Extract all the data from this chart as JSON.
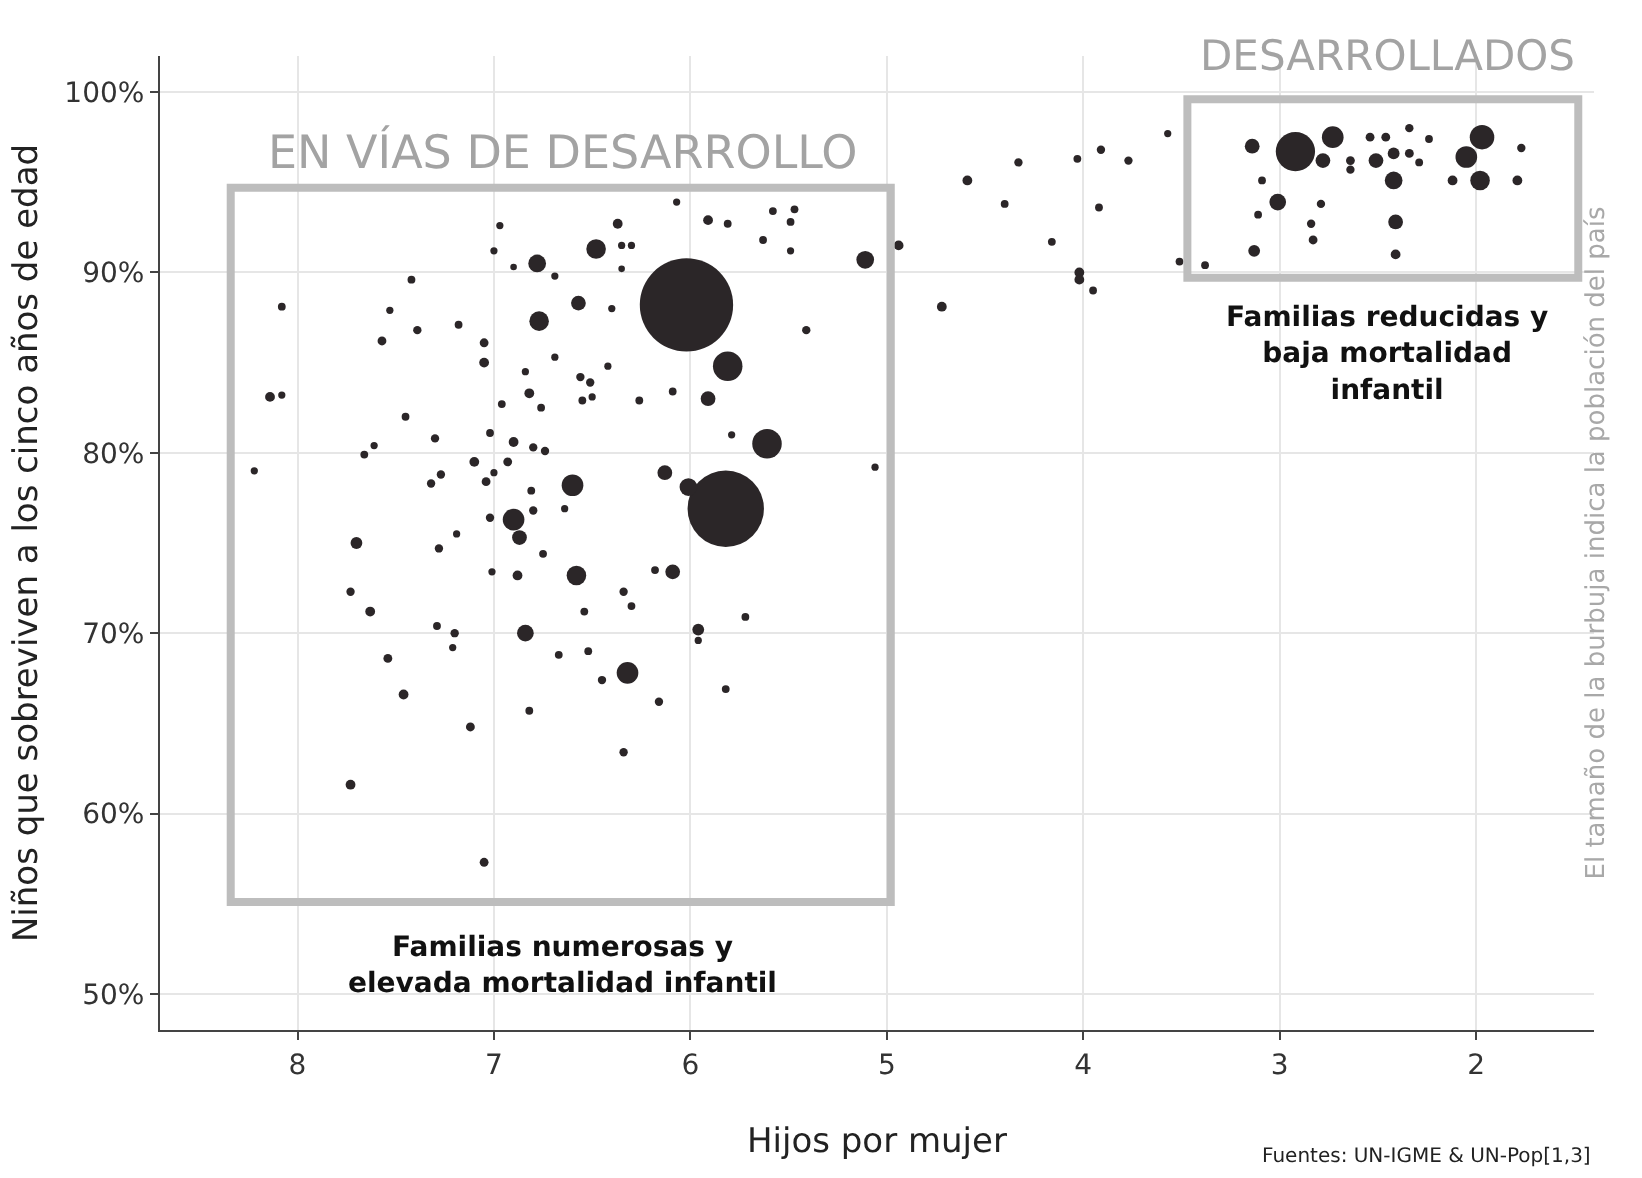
{
  "chart_data": {
    "type": "bubble",
    "xlabel": "Hijos por mujer",
    "ylabel": "Niños que sobreviven a los cinco años de edad",
    "annotations": [
      "EN VÍAS DE DESARROLLO",
      "DESARROLLADOS",
      "Familias numerosas y\nelevada mortalidad infantil",
      "Familias reducidas y\nbaja mortalidad\ninfantil",
      "El tamaño de la burbuja indica la población del país",
      "Fuentes: UN-IGME & UN-Pop[1,3]"
    ],
    "xlim": [
      8.7,
      1.4
    ],
    "xticks": [
      8,
      7,
      6,
      5,
      4,
      3,
      2
    ],
    "ylim": [
      48,
      102
    ],
    "yticks": [
      {
        "value": 50,
        "label": "50%"
      },
      {
        "value": 60,
        "label": "60%"
      },
      {
        "value": 70,
        "label": "70%"
      },
      {
        "value": 80,
        "label": "80%"
      },
      {
        "value": 90,
        "label": "90%"
      },
      {
        "value": 100,
        "label": "100%"
      }
    ],
    "grid": true,
    "marker": "circle",
    "series": [
      {
        "color": "#2b2628",
        "x": [
          6.02,
          5.82,
          2.92,
          6.07,
          6.37,
          5.91,
          5.81,
          6.97,
          5.58,
          5.47,
          5.49,
          5.63,
          5.49,
          6.48,
          6.35,
          6.3,
          6.35,
          7.0,
          6.78,
          6.9,
          6.69,
          5.11,
          4.94,
          7.42,
          8.08,
          7.53,
          6.57,
          6.4,
          6.77,
          7.18,
          7.39,
          7.57,
          7.05,
          5.41,
          5.81,
          7.05,
          6.69,
          6.42,
          6.84,
          6.56,
          6.51,
          8.14,
          8.08,
          6.82,
          6.55,
          6.5,
          6.96,
          6.76,
          6.26,
          6.09,
          5.91,
          7.45,
          7.02,
          7.3,
          5.79,
          6.9,
          6.8,
          6.74,
          7.61,
          7.66,
          5.61,
          7.1,
          6.93,
          7.0,
          7.27,
          7.32,
          7.04,
          6.13,
          8.22,
          5.06,
          6.6,
          6.01,
          6.81,
          6.64,
          7.02,
          6.9,
          6.8,
          6.87,
          6.75,
          7.7,
          7.28,
          7.19,
          7.01,
          6.88,
          6.58,
          6.18,
          6.09,
          7.73,
          7.63,
          6.34,
          6.3,
          6.54,
          5.72,
          7.29,
          7.2,
          7.21,
          6.84,
          5.96,
          5.96,
          7.54,
          6.67,
          6.52,
          6.32,
          6.45,
          5.82,
          7.46,
          6.16,
          6.82,
          6.34,
          7.73,
          7.05,
          7.12,
          4.72,
          4.59,
          4.4,
          4.33,
          4.16,
          4.03,
          3.91,
          3.92,
          3.77,
          4.02,
          4.02,
          3.95,
          3.57,
          3.51,
          3.38,
          3.14,
          2.73,
          2.78,
          2.64,
          2.64,
          2.54,
          2.46,
          2.34,
          2.24,
          2.51,
          2.42,
          2.42,
          2.34,
          2.29,
          1.97,
          2.05,
          1.98,
          2.12,
          1.77,
          1.79,
          3.09,
          3.01,
          2.79,
          3.11,
          2.84,
          2.83,
          2.41,
          3.13,
          2.41
        ],
        "values": [
          88.2,
          76.9,
          96.7,
          93.9,
          92.7,
          92.9,
          92.7,
          92.6,
          93.4,
          93.5,
          92.8,
          91.8,
          91.2,
          91.3,
          91.5,
          91.5,
          90.2,
          91.2,
          90.5,
          90.3,
          89.8,
          90.7,
          91.5,
          89.6,
          88.1,
          87.9,
          88.3,
          88.0,
          87.3,
          87.1,
          86.8,
          86.2,
          86.1,
          86.8,
          84.8,
          85.0,
          85.3,
          84.8,
          84.5,
          84.2,
          83.9,
          83.1,
          83.2,
          83.3,
          82.9,
          83.1,
          82.7,
          82.5,
          82.9,
          83.4,
          83.0,
          82.0,
          81.1,
          80.8,
          81.0,
          80.6,
          80.3,
          80.1,
          80.4,
          79.9,
          80.5,
          79.5,
          79.5,
          78.9,
          78.8,
          78.3,
          78.4,
          78.9,
          79.0,
          79.2,
          78.2,
          78.1,
          77.9,
          76.9,
          76.4,
          76.3,
          76.8,
          75.3,
          74.4,
          75.0,
          74.7,
          75.5,
          73.4,
          73.2,
          73.2,
          73.5,
          73.4,
          72.3,
          71.2,
          72.3,
          71.5,
          71.2,
          70.9,
          70.4,
          70.0,
          69.2,
          70.0,
          70.2,
          69.6,
          68.6,
          68.8,
          69.0,
          67.8,
          67.4,
          66.9,
          66.6,
          66.2,
          65.7,
          63.4,
          61.6,
          57.3,
          64.8,
          88.1,
          95.1,
          93.8,
          96.1,
          91.7,
          96.3,
          96.8,
          93.6,
          96.2,
          90.0,
          89.6,
          89.0,
          97.7,
          90.6,
          90.4,
          97.0,
          97.5,
          96.2,
          96.2,
          95.7,
          97.5,
          97.5,
          98.0,
          97.4,
          96.2,
          96.6,
          95.1,
          96.6,
          96.1,
          97.5,
          96.4,
          95.1,
          95.1,
          96.9,
          95.1,
          95.1,
          93.9,
          93.8,
          93.2,
          92.7,
          91.8,
          92.8,
          91.2,
          91.0
        ],
        "sizes": [
          1,
          0.67,
          0.177,
          0.006,
          0.011,
          0.011,
          0.007,
          0.006,
          0.007,
          0.007,
          0.007,
          0.007,
          0.006,
          0.044,
          0.006,
          0.006,
          0.005,
          0.006,
          0.036,
          0.005,
          0.006,
          0.036,
          0.011,
          0.007,
          0.007,
          0.006,
          0.025,
          0.006,
          0.044,
          0.007,
          0.008,
          0.009,
          0.009,
          0.008,
          0.1,
          0.011,
          0.006,
          0.006,
          0.006,
          0.008,
          0.008,
          0.011,
          0.006,
          0.011,
          0.007,
          0.006,
          0.007,
          0.007,
          0.007,
          0.007,
          0.025,
          0.007,
          0.007,
          0.008,
          0.006,
          0.011,
          0.008,
          0.008,
          0.006,
          0.007,
          0.1,
          0.011,
          0.009,
          0.006,
          0.008,
          0.008,
          0.009,
          0.025,
          0.006,
          0.006,
          0.054,
          0.036,
          0.007,
          0.006,
          0.008,
          0.054,
          0.008,
          0.025,
          0.007,
          0.016,
          0.008,
          0.006,
          0.006,
          0.011,
          0.044,
          0.007,
          0.025,
          0.008,
          0.011,
          0.008,
          0.007,
          0.007,
          0.007,
          0.007,
          0.008,
          0.006,
          0.032,
          0.016,
          0.006,
          0.009,
          0.007,
          0.007,
          0.054,
          0.008,
          0.007,
          0.011,
          0.008,
          0.007,
          0.008,
          0.011,
          0.009,
          0.009,
          0.011,
          0.011,
          0.007,
          0.008,
          0.007,
          0.007,
          0.008,
          0.007,
          0.008,
          0.011,
          0.011,
          0.007,
          0.006,
          0.007,
          0.007,
          0.025,
          0.054,
          0.025,
          0.009,
          0.008,
          0.009,
          0.009,
          0.008,
          0.007,
          0.025,
          0.016,
          0.036,
          0.009,
          0.007,
          0.069,
          0.054,
          0.044,
          0.011,
          0.008,
          0.011,
          0.007,
          0.032,
          0.008,
          0.007,
          0.008,
          0.009,
          0.025,
          0.016,
          0.011
        ]
      }
    ]
  }
}
